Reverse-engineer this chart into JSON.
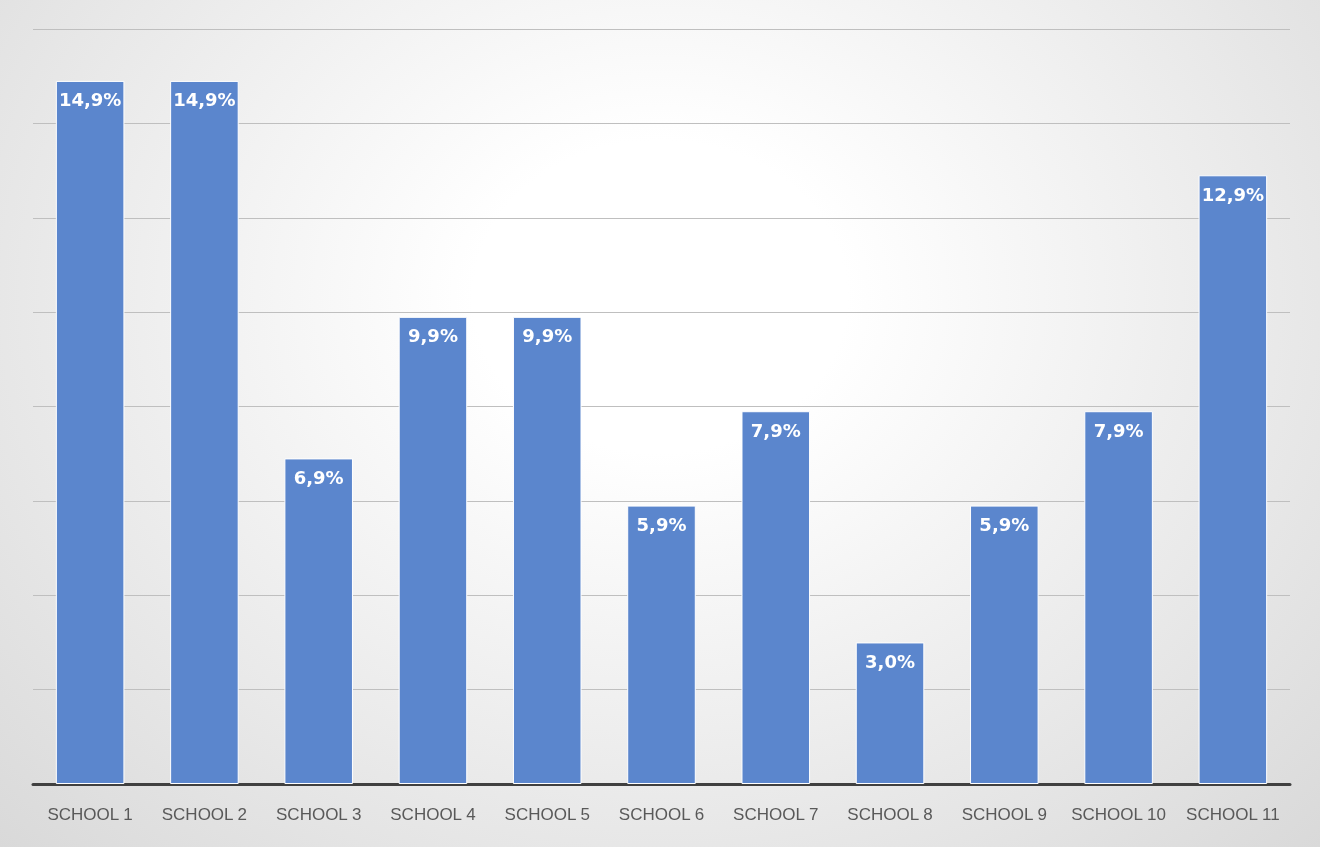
{
  "chart_data": {
    "type": "bar",
    "categories": [
      "SCHOOL 1",
      "SCHOOL 2",
      "SCHOOL 3",
      "SCHOOL 4",
      "SCHOOL 5",
      "SCHOOL 6",
      "SCHOOL 7",
      "SCHOOL 8",
      "SCHOOL 9",
      "SCHOOL 10",
      "SCHOOL 11"
    ],
    "values": [
      14.9,
      14.9,
      6.9,
      9.9,
      9.9,
      5.9,
      7.9,
      3.0,
      5.9,
      7.9,
      12.9
    ],
    "value_labels": [
      "14,9%",
      "14,9%",
      "6,9%",
      "9,9%",
      "9,9%",
      "5,9%",
      "7,9%",
      "3,0%",
      "5,9%",
      "7,9%",
      "12,9%"
    ],
    "color": "#5b86cd",
    "ylim": [
      0,
      16
    ],
    "yticks": [
      {
        "value": 0,
        "label": null
      },
      {
        "value": 2,
        "label": null
      },
      {
        "value": 4,
        "label": null
      },
      {
        "value": 6,
        "label": null
      },
      {
        "value": 8,
        "label": null
      },
      {
        "value": 10,
        "label": null
      },
      {
        "value": 12,
        "label": null
      },
      {
        "value": 14,
        "label": null
      },
      {
        "value": 16,
        "label": null
      }
    ],
    "grid": true,
    "tick_labels": "x"
  }
}
